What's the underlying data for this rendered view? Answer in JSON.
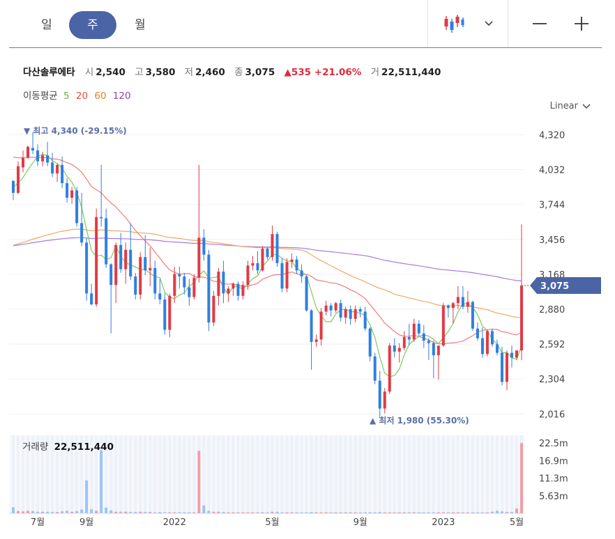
{
  "periods": [
    {
      "label": "일",
      "active": false
    },
    {
      "label": "주",
      "active": true
    },
    {
      "label": "월",
      "active": false
    }
  ],
  "icons": {
    "chart_type": "candlestick-icon",
    "dropdown": "chevron-down-icon",
    "zoom_out": "minus-icon",
    "zoom_in": "plus-icon"
  },
  "stock": {
    "name": "다산솔루에타",
    "open_label": "시",
    "open": "2,540",
    "high_label": "고",
    "high": "3,580",
    "low_label": "저",
    "low": "2,460",
    "close_label": "종",
    "close": "3,075",
    "change": "▲535 +21.06%",
    "volume_label": "거",
    "volume": "22,511,440"
  },
  "ma": {
    "label": "이동평균",
    "periods": [
      {
        "p": "5",
        "color": "#6ab04c"
      },
      {
        "p": "20",
        "color": "#e74c3c"
      },
      {
        "p": "60",
        "color": "#e67e22"
      },
      {
        "p": "120",
        "color": "#8e44ad"
      }
    ]
  },
  "scale": {
    "label": "Linear"
  },
  "volume_panel": {
    "label": "거래량",
    "value": "22,511,440"
  },
  "colors": {
    "up": "#e03a45",
    "down": "#2f7fe0",
    "accent": "#4a64a6",
    "ma5": "#7dc95e",
    "ma20": "#ef7b7b",
    "ma60": "#f0a860",
    "ma120": "#a77ae0"
  },
  "chart_data": {
    "type": "candlestick",
    "y_ticks": [
      "4,320",
      "4,032",
      "3,744",
      "3,456",
      "3,168",
      "2,880",
      "2,592",
      "2,304",
      "2,016"
    ],
    "y_range": [
      1880,
      4420
    ],
    "x_labels": [
      "7월",
      "9월",
      "2022",
      "5월",
      "9월",
      "2023",
      "5월"
    ],
    "current_price": "3,075",
    "high_marker": "▼ 최고 4,340 (-29.15%)",
    "low_marker": "▲ 최저 1,980 (55.30%)",
    "volume_ticks": [
      "22.5m",
      "16.9m",
      "11.3m",
      "5.63m"
    ],
    "volume_range": [
      0,
      25000000
    ],
    "candles": [
      [
        3940,
        3940,
        3780,
        3840
      ],
      [
        3840,
        4100,
        3830,
        4060
      ],
      [
        4050,
        4190,
        4010,
        4130
      ],
      [
        4130,
        4230,
        4120,
        4220
      ],
      [
        4210,
        4340,
        4160,
        4190
      ],
      [
        4190,
        4240,
        4060,
        4100
      ],
      [
        4100,
        4180,
        4060,
        4150
      ],
      [
        4150,
        4260,
        4060,
        4090
      ],
      [
        4090,
        4170,
        3970,
        4000
      ],
      [
        4000,
        4080,
        3930,
        4070
      ],
      [
        4070,
        4140,
        3880,
        3920
      ],
      [
        3920,
        3960,
        3760,
        3800
      ],
      [
        3800,
        3890,
        3750,
        3860
      ],
      [
        3860,
        3890,
        3560,
        3590
      ],
      [
        3590,
        3840,
        3400,
        3430
      ],
      [
        3430,
        3470,
        2950,
        3010
      ],
      [
        3010,
        3090,
        2910,
        2920
      ],
      [
        2920,
        3710,
        2900,
        3640
      ],
      [
        3640,
        4070,
        3560,
        3630
      ],
      [
        3630,
        3710,
        3220,
        3250
      ],
      [
        3250,
        3260,
        2680,
        3080
      ],
      [
        3080,
        3430,
        2930,
        3410
      ],
      [
        3410,
        3510,
        3180,
        3210
      ],
      [
        3210,
        3430,
        3090,
        3370
      ],
      [
        3370,
        3590,
        3120,
        3150
      ],
      [
        3150,
        3180,
        2960,
        3000
      ],
      [
        3000,
        3350,
        2960,
        3310
      ],
      [
        3310,
        3490,
        3160,
        3200
      ],
      [
        3200,
        3390,
        3070,
        3220
      ],
      [
        3220,
        3280,
        2960,
        3010
      ],
      [
        3010,
        3130,
        2920,
        2960
      ],
      [
        2960,
        3010,
        2670,
        2710
      ],
      [
        2710,
        3010,
        2650,
        2990
      ],
      [
        2990,
        3230,
        2930,
        3170
      ],
      [
        3170,
        3230,
        3050,
        3150
      ],
      [
        3150,
        3180,
        3000,
        3060
      ],
      [
        3060,
        3130,
        2910,
        2980
      ],
      [
        2980,
        3170,
        2960,
        3140
      ],
      [
        3140,
        4070,
        3100,
        3470
      ],
      [
        3470,
        3540,
        3280,
        3330
      ],
      [
        3330,
        3370,
        2700,
        2770
      ],
      [
        2770,
        3030,
        2740,
        2990
      ],
      [
        2990,
        3220,
        2910,
        3190
      ],
      [
        3190,
        3280,
        2930,
        3010
      ],
      [
        3010,
        3070,
        2940,
        3050
      ],
      [
        3050,
        3100,
        2990,
        3090
      ],
      [
        3090,
        3110,
        2950,
        2990
      ],
      [
        2990,
        3110,
        2960,
        3080
      ],
      [
        3080,
        3280,
        3040,
        3240
      ],
      [
        3240,
        3320,
        3200,
        3260
      ],
      [
        3260,
        3360,
        3170,
        3200
      ],
      [
        3200,
        3400,
        3190,
        3380
      ],
      [
        3380,
        3390,
        3290,
        3310
      ],
      [
        3310,
        3570,
        3280,
        3500
      ],
      [
        3500,
        3520,
        3230,
        3260
      ],
      [
        3260,
        3300,
        3020,
        3050
      ],
      [
        3050,
        3300,
        3020,
        3270
      ],
      [
        3270,
        3340,
        3220,
        3290
      ],
      [
        3290,
        3320,
        3170,
        3200
      ],
      [
        3200,
        3250,
        3100,
        3150
      ],
      [
        3150,
        3160,
        2860,
        2870
      ],
      [
        2870,
        2880,
        2380,
        2610
      ],
      [
        2610,
        2670,
        2570,
        2630
      ],
      [
        2630,
        2890,
        2580,
        2860
      ],
      [
        2860,
        2950,
        2830,
        2910
      ],
      [
        2910,
        2930,
        2820,
        2870
      ],
      [
        2870,
        2940,
        2850,
        2930
      ],
      [
        2930,
        2960,
        2780,
        2810
      ],
      [
        2810,
        2900,
        2760,
        2880
      ],
      [
        2880,
        2910,
        2750,
        2800
      ],
      [
        2800,
        2910,
        2770,
        2880
      ],
      [
        2880,
        2900,
        2810,
        2860
      ],
      [
        2860,
        2900,
        2700,
        2720
      ],
      [
        2720,
        2730,
        2450,
        2490
      ],
      [
        2490,
        2520,
        2260,
        2290
      ],
      [
        2290,
        2370,
        1980,
        2060
      ],
      [
        2060,
        2230,
        2020,
        2200
      ],
      [
        2200,
        2600,
        2180,
        2580
      ],
      [
        2580,
        2640,
        2480,
        2530
      ],
      [
        2530,
        2600,
        2440,
        2560
      ],
      [
        2560,
        2700,
        2540,
        2650
      ],
      [
        2650,
        2760,
        2580,
        2630
      ],
      [
        2630,
        2800,
        2610,
        2760
      ],
      [
        2760,
        2790,
        2660,
        2680
      ],
      [
        2680,
        2750,
        2560,
        2620
      ],
      [
        2620,
        2640,
        2460,
        2600
      ],
      [
        2600,
        2620,
        2310,
        2500
      ],
      [
        2500,
        2560,
        2300,
        2580
      ],
      [
        2580,
        2930,
        2570,
        2910
      ],
      [
        2910,
        2920,
        2810,
        2890
      ],
      [
        2890,
        2940,
        2760,
        2930
      ],
      [
        2930,
        3070,
        2880,
        2980
      ],
      [
        2980,
        3070,
        2880,
        2900
      ],
      [
        2900,
        3030,
        2850,
        2940
      ],
      [
        2940,
        2950,
        2700,
        2720
      ],
      [
        2720,
        2770,
        2620,
        2640
      ],
      [
        2640,
        2730,
        2480,
        2510
      ],
      [
        2510,
        2710,
        2490,
        2700
      ],
      [
        2700,
        2720,
        2570,
        2590
      ],
      [
        2590,
        2630,
        2500,
        2520
      ],
      [
        2520,
        2570,
        2250,
        2280
      ],
      [
        2280,
        2540,
        2210,
        2520
      ],
      [
        2520,
        2580,
        2400,
        2480
      ],
      [
        2480,
        2530,
        2460,
        2540
      ],
      [
        2540,
        3580,
        2460,
        3075
      ]
    ],
    "volumes": [
      1900000,
      700000,
      600000,
      800000,
      700000,
      500000,
      500000,
      500000,
      400000,
      400000,
      600000,
      800000,
      500000,
      700000,
      1200000,
      10500000,
      1300000,
      800000,
      20200000,
      1800000,
      900000,
      500000,
      500000,
      500000,
      400000,
      400000,
      500000,
      400000,
      400000,
      300000,
      400000,
      300000,
      300000,
      300000,
      300000,
      300000,
      300000,
      300000,
      20000000,
      2500000,
      800000,
      500000,
      500000,
      400000,
      300000,
      300000,
      300000,
      300000,
      300000,
      300000,
      300000,
      300000,
      300000,
      500000,
      500000,
      300000,
      300000,
      300000,
      300000,
      300000,
      300000,
      400000,
      300000,
      300000,
      300000,
      300000,
      300000,
      300000,
      300000,
      300000,
      300000,
      300000,
      300000,
      300000,
      300000,
      400000,
      300000,
      300000,
      300000,
      300000,
      300000,
      300000,
      300000,
      300000,
      300000,
      300000,
      300000,
      300000,
      300000,
      300000,
      300000,
      300000,
      300000,
      300000,
      300000,
      300000,
      300000,
      300000,
      500000,
      800000,
      600000,
      400000,
      400000,
      1500000,
      22511440
    ]
  }
}
